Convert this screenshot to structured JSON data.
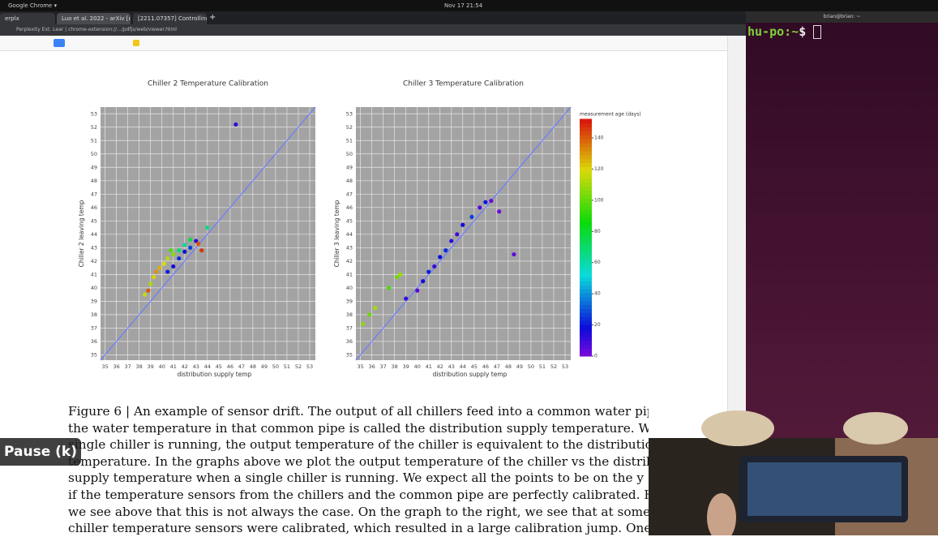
{
  "system_bar": {
    "app": "Google Chrome ▾",
    "clock": "Nov 17 21:54"
  },
  "browser": {
    "tabs": [
      "erplx",
      "Luo et al. 2022 - arXiv [c",
      "[2211.07357] Controlling"
    ],
    "address": "Perplexity Ext. Lear | chrome-extension://.../pdfjs/web/viewer.html"
  },
  "chart_data": [
    {
      "type": "scatter",
      "title": "Chiller 2 Temperature Calibration",
      "x_label": "distribution supply temp",
      "y_label": "Chiller 2 leaving temp",
      "xlim": [
        34.6,
        53.5
      ],
      "ylim": [
        34.6,
        53.5
      ],
      "xticks": [
        35,
        36,
        37,
        38,
        39,
        40,
        41,
        42,
        43,
        44,
        45,
        46,
        47,
        48,
        49,
        50,
        51,
        52,
        53
      ],
      "yticks": [
        35,
        36,
        37,
        38,
        39,
        40,
        41,
        42,
        43,
        44,
        45,
        46,
        47,
        48,
        49,
        50,
        51,
        52,
        53
      ],
      "x": [
        38.5,
        39,
        39.3,
        39.8,
        40.2,
        40.5,
        39.5,
        38.8,
        41,
        40.8,
        41.5,
        42,
        42.5,
        40.5,
        41,
        41.5,
        42,
        42.5,
        43,
        43.5,
        43.2,
        44,
        46.5
      ],
      "series": [
        {
          "values": [
            39.5,
            40.3,
            40.8,
            41.5,
            41.8,
            42.2,
            41.2,
            39.8,
            42.5,
            42.8,
            42.8,
            43.2,
            43.6,
            41.2,
            41.6,
            42.2,
            42.7,
            43,
            43.5,
            42.8,
            43.3,
            44.5,
            52.2
          ],
          "ages": [
            115,
            110,
            120,
            125,
            118,
            112,
            130,
            140,
            105,
            95,
            70,
            60,
            75,
            20,
            15,
            22,
            18,
            25,
            12,
            145,
            140,
            65,
            10
          ]
        }
      ]
    },
    {
      "type": "scatter",
      "title": "Chiller 3 Temperature Calibration",
      "x_label": "distribution supply temp",
      "y_label": "Chiller 3 leaving temp",
      "xlim": [
        34.6,
        53.5
      ],
      "ylim": [
        34.6,
        53.5
      ],
      "xticks": [
        35,
        36,
        37,
        38,
        39,
        40,
        41,
        42,
        43,
        44,
        45,
        46,
        47,
        48,
        49,
        50,
        51,
        52,
        53
      ],
      "yticks": [
        35,
        36,
        37,
        38,
        39,
        40,
        41,
        42,
        43,
        44,
        45,
        46,
        47,
        48,
        49,
        50,
        51,
        52,
        53
      ],
      "x": [
        35.2,
        35.8,
        36.3,
        37.5,
        38.2,
        38.5,
        40.5,
        41,
        41.5,
        42,
        42.5,
        43,
        43.5,
        44,
        44.8,
        45.5,
        46,
        40,
        39,
        47.2,
        46.5,
        48.5
      ],
      "series": [
        {
          "values": [
            37.3,
            38,
            38.5,
            40,
            40.8,
            41,
            40.5,
            41.2,
            41.6,
            42.3,
            42.8,
            43.5,
            44,
            44.7,
            45.3,
            46,
            46.4,
            39.8,
            39.2,
            45.7,
            46.5,
            42.5
          ],
          "ages": [
            105,
            100,
            110,
            95,
            100,
            108,
            15,
            20,
            10,
            18,
            22,
            12,
            8,
            15,
            25,
            5,
            18,
            5,
            10,
            0,
            2,
            3
          ]
        }
      ],
      "colorbar": {
        "label": "measurement age (days)",
        "lim": [
          0,
          152
        ],
        "ticks": [
          0,
          20,
          40,
          60,
          80,
          100,
          120,
          140
        ]
      }
    }
  ],
  "caption": [
    "Figure 6 | An example of sensor drift. The output of all chillers feed into a common water pipe, and",
    "the water temperature in that common pipe is called the distribution supply temperature. When a",
    "single chiller is running, the output temperature of the chiller is equivalent to the distribution supply",
    "temperature. In the graphs above we plot the output temperature of the chiller vs the distribution",
    "supply temperature when a single chiller is running. We expect all the points to be on the y = x axis",
    "if the temperature sensors from the chillers and the common pipe are perfectly calibrated. However",
    "we see above that this is not always the case. On the graph to the right, we see that at some point the",
    "chiller temperature sensors were calibrated, which resulted in a large calibration jump. One thing to"
  ],
  "terminal": {
    "title": "brian@brian: ~",
    "user": "hu-po",
    "path": ":~",
    "prompt": "$"
  },
  "player": {
    "pause": "Pause (k)"
  }
}
